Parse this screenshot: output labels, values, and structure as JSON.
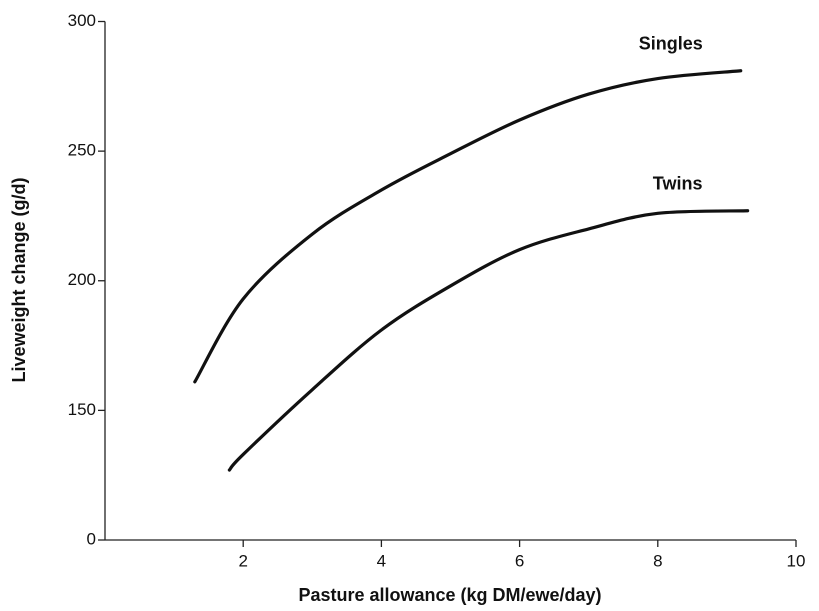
{
  "chart_data": {
    "type": "line",
    "xlabel": "Pasture allowance (kg DM/ewe/day)",
    "ylabel": "Liveweight change (g/d)",
    "axis_break": true,
    "xlim": [
      0,
      10
    ],
    "xticks": [
      2,
      4,
      6,
      8,
      10
    ],
    "ylim": [
      0,
      300
    ],
    "yticks": [
      0,
      150,
      200,
      250,
      300
    ],
    "series": [
      {
        "name": "Singles",
        "color": "#111111",
        "x": [
          1.3,
          2,
          3,
          4,
          5,
          6,
          7,
          8,
          9.2
        ],
        "values": [
          161,
          193,
          218,
          235,
          249,
          262,
          272,
          278,
          281
        ]
      },
      {
        "name": "Twins",
        "color": "#111111",
        "x": [
          1.8,
          2,
          3,
          4,
          5,
          6,
          7,
          8,
          9.3
        ],
        "values": [
          127,
          133,
          158,
          181,
          198,
          212,
          220,
          226,
          227
        ]
      }
    ]
  }
}
